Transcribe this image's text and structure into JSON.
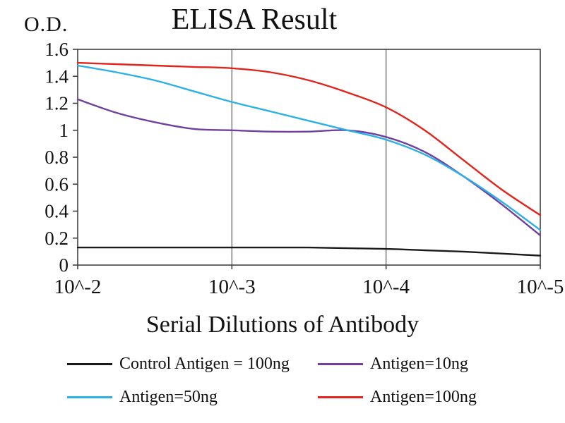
{
  "chart_data": {
    "type": "line",
    "title": "ELISA Result",
    "ylabel": "O.D.",
    "xlabel": "Serial Dilutions of Antibody",
    "x_tick_labels": [
      "10^-2",
      "10^-3",
      "10^-4",
      "10^-5"
    ],
    "y_ticks": [
      0,
      0.2,
      0.4,
      0.6,
      0.8,
      1,
      1.2,
      1.4,
      1.6
    ],
    "ylim": [
      0,
      1.6
    ],
    "x_axis_note": "x sampled in decade units: 0 = 10^-2, 3 = 10^-5",
    "x": [
      0,
      0.25,
      0.5,
      0.75,
      1,
      1.25,
      1.5,
      1.75,
      2,
      2.25,
      2.5,
      2.75,
      3
    ],
    "grid": "vertical-gridlines-with-box",
    "legend_position": "bottom",
    "series": [
      {
        "name": "Control Antigen = 100ng",
        "color": "#1a1a1a",
        "values": [
          0.13,
          0.13,
          0.13,
          0.13,
          0.13,
          0.13,
          0.13,
          0.125,
          0.12,
          0.11,
          0.1,
          0.085,
          0.07
        ]
      },
      {
        "name": "Antigen=10ng",
        "color": "#7040a0",
        "values": [
          1.23,
          1.13,
          1.06,
          1.01,
          1.0,
          0.99,
          0.99,
          1.0,
          0.95,
          0.84,
          0.66,
          0.45,
          0.22
        ]
      },
      {
        "name": "Antigen=50ng",
        "color": "#2bb0e8",
        "values": [
          1.48,
          1.43,
          1.37,
          1.29,
          1.21,
          1.14,
          1.07,
          1.0,
          0.93,
          0.82,
          0.66,
          0.47,
          0.26
        ]
      },
      {
        "name": "Antigen=100ng",
        "color": "#e0251c",
        "values": [
          1.5,
          1.49,
          1.48,
          1.47,
          1.46,
          1.43,
          1.37,
          1.28,
          1.17,
          1.0,
          0.78,
          0.56,
          0.37
        ]
      }
    ]
  }
}
